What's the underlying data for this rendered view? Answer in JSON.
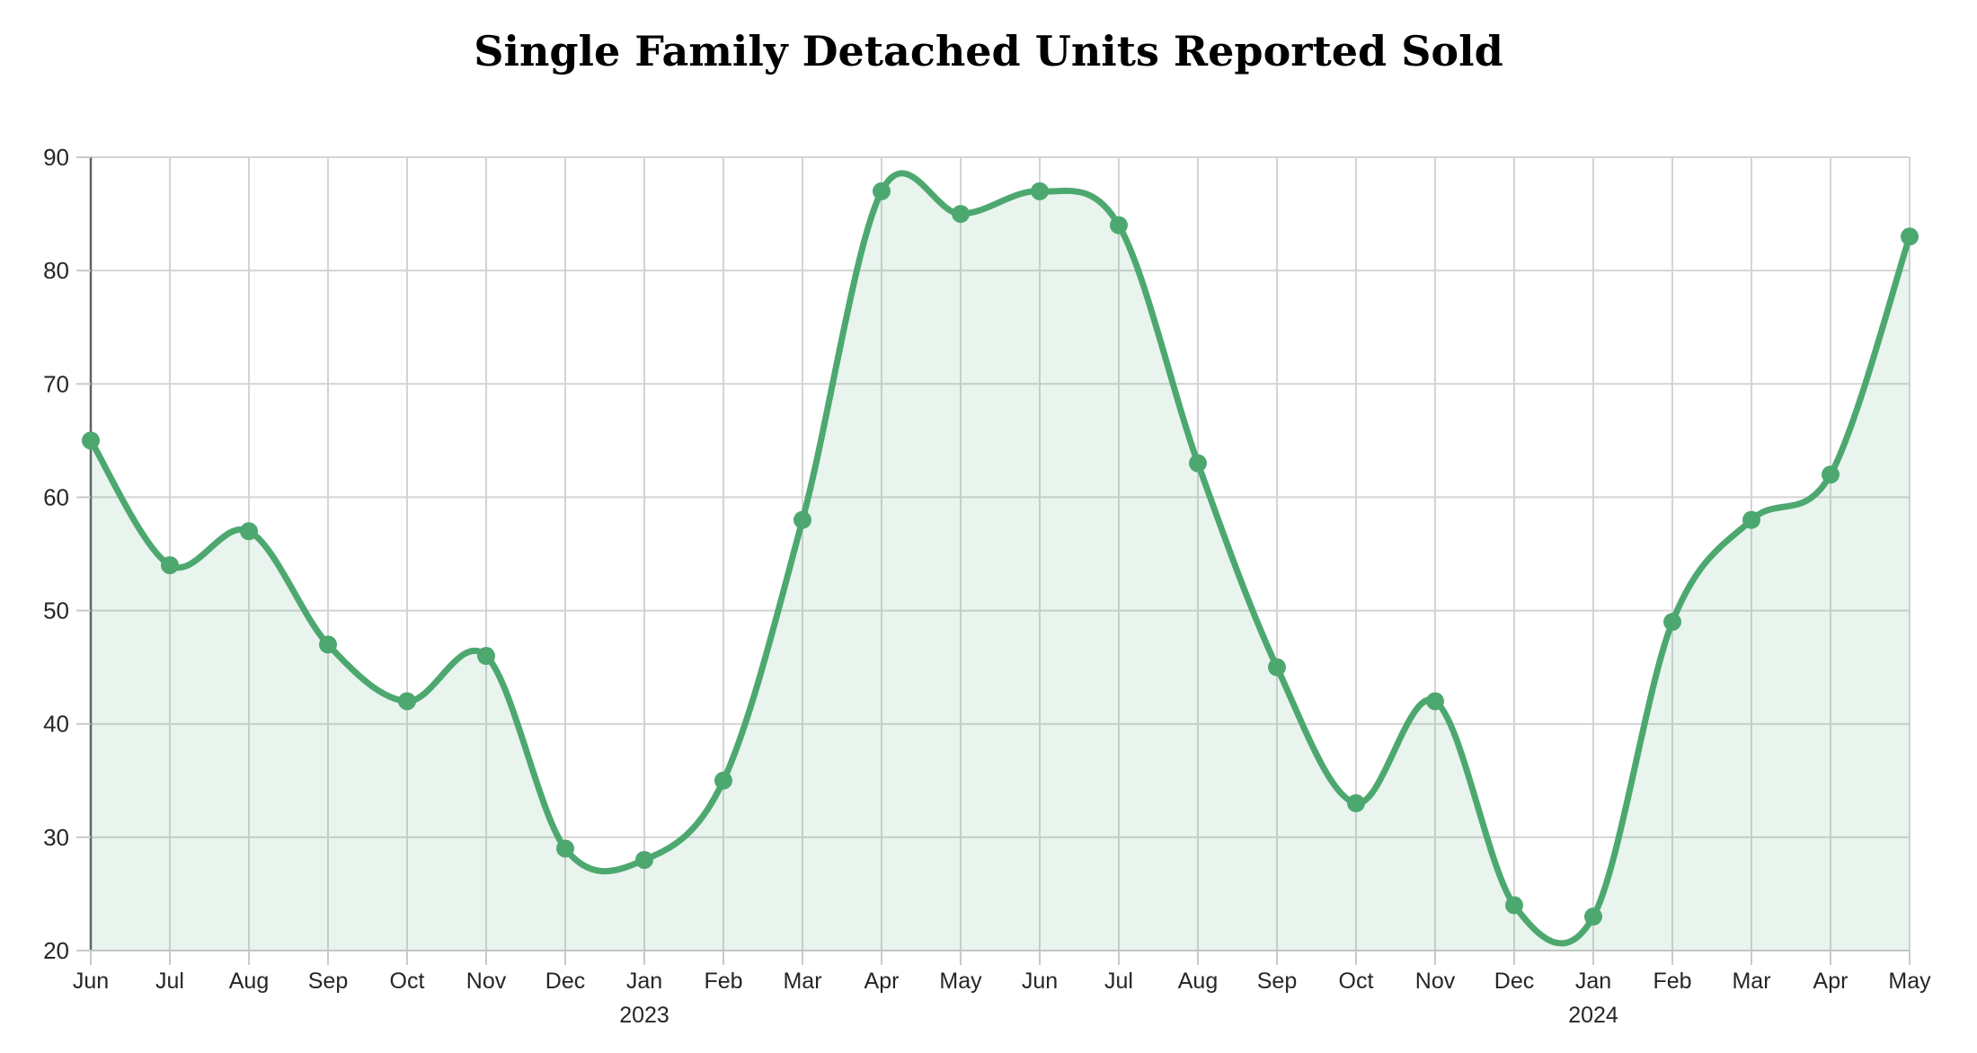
{
  "chart_data": {
    "type": "area",
    "title": "Single Family Detached Units Reported Sold",
    "categories": [
      "Jun",
      "Jul",
      "Aug",
      "Sep",
      "Oct",
      "Nov",
      "Dec",
      "Jan",
      "Feb",
      "Mar",
      "Apr",
      "May",
      "Jun",
      "Jul",
      "Aug",
      "Sep",
      "Oct",
      "Nov",
      "Dec",
      "Jan",
      "Feb",
      "Mar",
      "Apr",
      "May"
    ],
    "year_labels": [
      {
        "index": 7,
        "text": "2023"
      },
      {
        "index": 19,
        "text": "2024"
      }
    ],
    "values": [
      65,
      54,
      57,
      47,
      42,
      46,
      29,
      28,
      35,
      58,
      87,
      85,
      87,
      84,
      63,
      45,
      33,
      42,
      24,
      23,
      49,
      58,
      62,
      83
    ],
    "ylim": [
      20,
      90
    ],
    "yticks": [
      20,
      30,
      40,
      50,
      60,
      70,
      80,
      90
    ],
    "grid": true,
    "legend": false,
    "smooth": true,
    "marker": "circle",
    "colors": {
      "line": "#4da870",
      "fill": "rgba(77, 168, 112, 0.12)",
      "grid": "#d4d4d4",
      "x_axis": "#c9c9c9",
      "y_axis": "#616161",
      "tick": "#c9c9c9",
      "label": "#262626",
      "title": "#000000"
    }
  }
}
